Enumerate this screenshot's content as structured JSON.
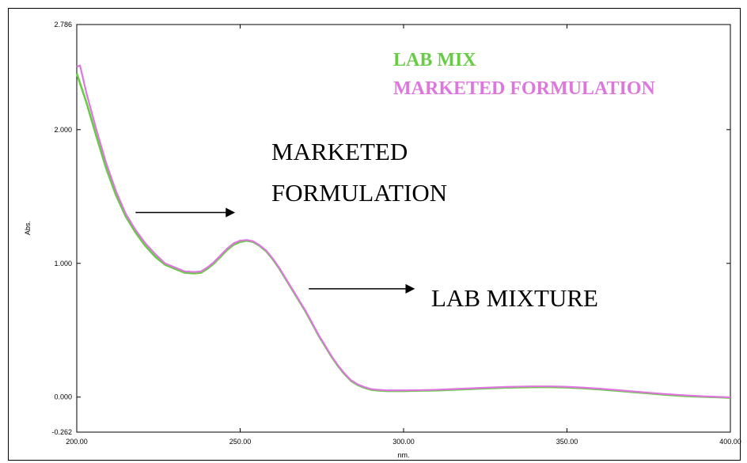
{
  "chart_data": {
    "type": "line",
    "xlabel": "nm.",
    "ylabel": "Abs.",
    "xlim": [
      200.0,
      400.0
    ],
    "ylim": [
      -0.262,
      2.786
    ],
    "x_ticks": [
      "200.00",
      "250.00",
      "300.00",
      "350.00",
      "400.00"
    ],
    "x_tick_values": [
      200,
      250,
      300,
      350,
      400
    ],
    "y_ticks": [
      "2.786",
      "2.000",
      "1.000",
      "0.000",
      "-0.262"
    ],
    "y_tick_values": [
      2.786,
      2.0,
      1.0,
      0.0,
      -0.262
    ],
    "legend": {
      "placement": "top-right",
      "entries": [
        {
          "label": "LAB MIX",
          "color": "#66cc44"
        },
        {
          "label": "MARKETED FORMULATION",
          "color": "#dd77dd"
        }
      ]
    },
    "annotations": [
      {
        "lines": [
          "MARKETED",
          "FORMULATION"
        ],
        "arrow_from": [
          218,
          1.38
        ],
        "arrow_to": [
          248,
          1.38
        ]
      },
      {
        "lines": [
          "LAB MIXTURE"
        ],
        "arrow_from": [
          271,
          0.81
        ],
        "arrow_to": [
          303,
          0.81
        ]
      }
    ],
    "series": [
      {
        "name": "LAB MIX",
        "color": "#66cc44",
        "x": [
          200,
          203,
          206,
          209,
          212,
          215,
          218,
          221,
          224,
          227,
          230,
          233,
          236,
          238,
          240,
          242,
          244,
          246,
          248,
          250,
          252,
          254,
          256,
          258,
          260,
          262,
          264,
          266,
          268,
          270,
          272,
          274,
          276,
          278,
          280,
          282,
          284,
          286,
          288,
          290,
          292,
          295,
          300,
          305,
          310,
          315,
          320,
          325,
          330,
          335,
          340,
          345,
          350,
          355,
          360,
          365,
          370,
          375,
          380,
          385,
          390,
          395,
          400
        ],
        "y": [
          2.42,
          2.2,
          1.95,
          1.71,
          1.51,
          1.35,
          1.23,
          1.13,
          1.05,
          0.99,
          0.96,
          0.93,
          0.925,
          0.93,
          0.96,
          1.0,
          1.05,
          1.1,
          1.14,
          1.16,
          1.17,
          1.16,
          1.13,
          1.09,
          1.03,
          0.96,
          0.88,
          0.8,
          0.72,
          0.64,
          0.55,
          0.46,
          0.38,
          0.3,
          0.23,
          0.17,
          0.12,
          0.09,
          0.07,
          0.055,
          0.05,
          0.045,
          0.045,
          0.048,
          0.05,
          0.055,
          0.06,
          0.065,
          0.07,
          0.073,
          0.075,
          0.075,
          0.072,
          0.066,
          0.058,
          0.048,
          0.038,
          0.028,
          0.018,
          0.01,
          0.004,
          0.0,
          -0.005
        ]
      },
      {
        "name": "MARKETED FORMULATION",
        "color": "#dd77dd",
        "x": [
          200,
          201,
          203,
          206,
          209,
          212,
          215,
          218,
          221,
          224,
          227,
          230,
          233,
          236,
          238,
          240,
          242,
          244,
          246,
          248,
          250,
          252,
          254,
          256,
          258,
          260,
          262,
          264,
          266,
          268,
          270,
          272,
          274,
          276,
          278,
          280,
          282,
          284,
          286,
          288,
          290,
          292,
          295,
          300,
          305,
          310,
          315,
          320,
          325,
          330,
          335,
          340,
          345,
          350,
          355,
          360,
          365,
          370,
          375,
          380,
          385,
          390,
          395,
          400
        ],
        "y": [
          2.47,
          2.48,
          2.27,
          2.0,
          1.75,
          1.54,
          1.37,
          1.25,
          1.15,
          1.07,
          1.0,
          0.97,
          0.94,
          0.935,
          0.94,
          0.97,
          1.01,
          1.06,
          1.11,
          1.15,
          1.17,
          1.175,
          1.165,
          1.135,
          1.095,
          1.035,
          0.965,
          0.885,
          0.805,
          0.725,
          0.645,
          0.555,
          0.465,
          0.385,
          0.305,
          0.235,
          0.175,
          0.125,
          0.095,
          0.075,
          0.06,
          0.055,
          0.05,
          0.05,
          0.052,
          0.055,
          0.06,
          0.065,
          0.07,
          0.075,
          0.078,
          0.08,
          0.08,
          0.077,
          0.071,
          0.063,
          0.053,
          0.043,
          0.033,
          0.023,
          0.015,
          0.008,
          0.003,
          -0.002
        ]
      }
    ]
  },
  "page": {
    "annotation_marketed_line1": "MARKETED",
    "annotation_marketed_line2": "FORMULATION",
    "annotation_lab": "LAB MIXTURE",
    "ylabel": "Abs.",
    "xlabel": "nm."
  }
}
